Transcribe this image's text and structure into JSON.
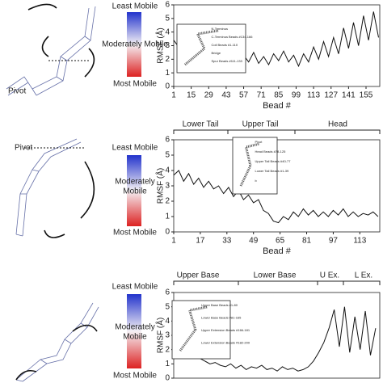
{
  "chart_data": [
    {
      "type": "line",
      "ylabel": "RMSF (Å)",
      "xlabel": "Bead #",
      "xlim": [
        1,
        166
      ],
      "ylim": [
        0,
        6
      ],
      "xticks": [
        1,
        15,
        29,
        43,
        57,
        71,
        85,
        99,
        113,
        127,
        141,
        155
      ],
      "yticks": [
        0,
        1,
        2,
        3,
        4,
        5,
        6
      ],
      "color": "#111111",
      "x": [
        1,
        5,
        9,
        13,
        17,
        21,
        25,
        29,
        33,
        37,
        41,
        45,
        49,
        53,
        57,
        61,
        65,
        69,
        73,
        77,
        81,
        85,
        89,
        93,
        97,
        101,
        105,
        109,
        113,
        117,
        121,
        125,
        129,
        133,
        137,
        141,
        145,
        149,
        153,
        157,
        161,
        165
      ],
      "values": [
        3.4,
        2.9,
        3.1,
        2.6,
        2.9,
        2.3,
        2.6,
        2.0,
        2.4,
        1.6,
        2.1,
        1.5,
        2.0,
        1.7,
        2.3,
        1.8,
        2.5,
        1.7,
        2.2,
        1.6,
        2.4,
        1.9,
        2.6,
        1.8,
        2.3,
        1.5,
        2.4,
        1.8,
        2.9,
        2.0,
        3.3,
        2.2,
        3.6,
        2.4,
        4.3,
        2.8,
        4.7,
        3.0,
        5.2,
        3.4,
        5.5,
        3.6
      ],
      "regions": [],
      "inset": [
        "N-Terminus",
        "C-Terminus Beads #134-166",
        "Coil Beads #1-110",
        "Bridge",
        "Spur Beads #111-133"
      ]
    },
    {
      "type": "line",
      "ylabel": "RMSF (Å)",
      "xlabel": "Bead #",
      "xlim": [
        1,
        125
      ],
      "ylim": [
        0,
        6
      ],
      "xticks": [
        1,
        17,
        33,
        49,
        65,
        81,
        97,
        113
      ],
      "yticks": [
        0,
        1,
        2,
        3,
        4,
        5,
        6
      ],
      "color": "#111111",
      "x": [
        1,
        4,
        7,
        10,
        13,
        16,
        19,
        22,
        25,
        28,
        31,
        34,
        37,
        40,
        43,
        46,
        49,
        52,
        55,
        58,
        61,
        64,
        67,
        70,
        73,
        76,
        79,
        82,
        85,
        88,
        91,
        94,
        97,
        100,
        103,
        106,
        109,
        112,
        115,
        118,
        121,
        124
      ],
      "values": [
        3.7,
        4.0,
        3.3,
        3.8,
        3.1,
        3.5,
        2.9,
        3.3,
        2.8,
        3.0,
        2.5,
        2.9,
        2.3,
        2.7,
        2.1,
        2.4,
        1.9,
        2.1,
        1.4,
        1.2,
        0.7,
        0.6,
        1.0,
        0.8,
        1.3,
        1.0,
        1.5,
        1.1,
        1.4,
        1.0,
        1.3,
        1.0,
        1.4,
        1.1,
        1.5,
        1.0,
        1.3,
        1.0,
        1.2,
        1.1,
        1.3,
        1.0
      ],
      "regions": [
        "Lower Tail",
        "Upper Tail",
        "Head"
      ],
      "inset": [
        "Pivot",
        "Head Beads #78-125",
        "Upper Tail Beads #40-77",
        "Lower Tail Beads #1-39",
        "b"
      ]
    },
    {
      "type": "line",
      "ylabel": "RMSF (Å)",
      "xlim": [
        1,
        200
      ],
      "ylim": [
        0,
        6
      ],
      "yticks": [
        0,
        1,
        2,
        3,
        4,
        5,
        6
      ],
      "color": "#111111",
      "x": [
        1,
        6,
        11,
        16,
        21,
        26,
        31,
        36,
        41,
        46,
        51,
        56,
        61,
        66,
        71,
        76,
        81,
        86,
        91,
        96,
        101,
        106,
        111,
        116,
        121,
        126,
        131,
        136,
        141,
        146,
        151,
        156,
        161,
        166,
        171,
        176,
        181,
        186,
        191,
        196
      ],
      "values": [
        2.5,
        2.1,
        1.8,
        2.0,
        1.6,
        1.4,
        1.2,
        1.0,
        1.1,
        0.9,
        0.8,
        1.0,
        0.7,
        0.9,
        0.6,
        0.8,
        0.7,
        0.9,
        0.6,
        0.7,
        0.5,
        0.8,
        0.6,
        0.7,
        0.5,
        0.6,
        0.8,
        1.2,
        1.8,
        2.5,
        3.5,
        4.8,
        2.2,
        5.0,
        1.8,
        4.3,
        2.0,
        4.7,
        1.6,
        3.5
      ],
      "regions": [
        "Upper Base",
        "Lower Base",
        "U Ex.",
        "L Ex."
      ],
      "inset": [
        "Upper Base Beads #1-80",
        "Lower Base Beads #81-165",
        "Upper Extension Beads #166-181",
        "Lower Extension Beads #182-200"
      ]
    }
  ],
  "panels": [
    {
      "pivot": "Pivot",
      "least": "Least Mobile",
      "moderate": [
        "Moderately Mobile"
      ],
      "most": "Most Mobile"
    },
    {
      "pivot": "Pivot",
      "least": "Least Mobile",
      "moderate": [
        "Moderately",
        "Mobile"
      ],
      "most": "Most Mobile"
    },
    {
      "least": "Least Mobile",
      "moderate": [
        "Moderately",
        "Mobile"
      ],
      "most": "Most Mobile"
    }
  ]
}
